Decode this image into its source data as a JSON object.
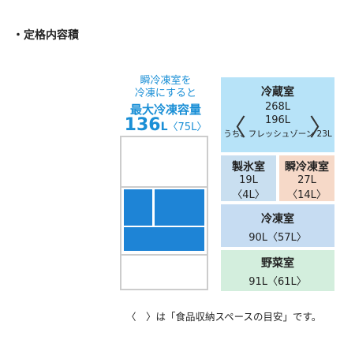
{
  "heading": "・定格内容積",
  "note_line1": "瞬冷凍室を",
  "note_line2": "冷凍にすると",
  "max_freezer": {
    "label": "最大冷凍容量",
    "value": "136",
    "unit": "L",
    "sub": "〈75L〉"
  },
  "compartments": {
    "fridge": {
      "title": "冷蔵室",
      "total": "268L",
      "inner_value": "196L",
      "inner_note": "うち、フレッシュゾーン 23L"
    },
    "ice": {
      "title": "製氷室",
      "value": "19L",
      "sub": "〈4L〉"
    },
    "quick": {
      "title": "瞬冷凍室",
      "value": "27L",
      "sub": "〈14L〉"
    },
    "freezer": {
      "title": "冷凍室",
      "value": "90L〈57L〉"
    },
    "vegetable": {
      "title": "野菜室",
      "value": "91L〈61L〉"
    }
  },
  "footnote": "〈　〉は「食品収納スペースの目安」です。",
  "colors": {
    "accent_blue": "#1a8fd6",
    "block_blue": "#1e84d6",
    "fridge_box": "#b7e3f8",
    "ice_box": "#c9dff0",
    "quick_box": "#f6d9c8",
    "freezer_box": "#c6dcf2",
    "vegetable_box": "#d3eedd"
  }
}
